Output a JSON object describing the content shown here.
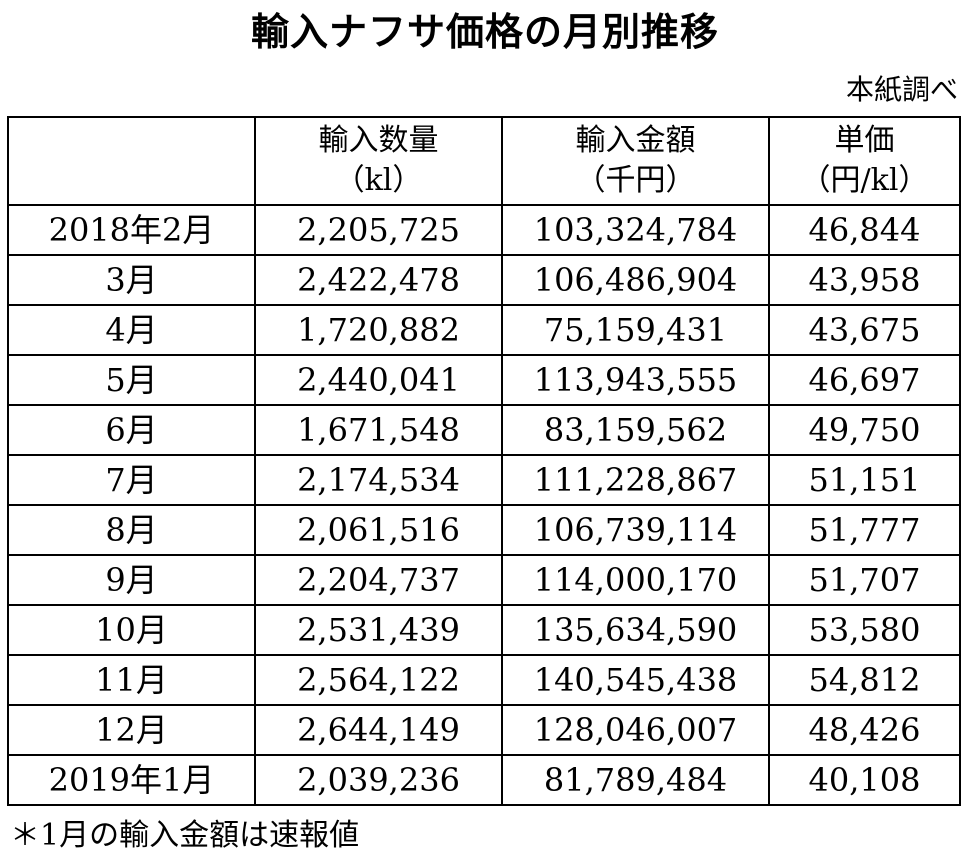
{
  "title": "輸入ナフサ価格の月別推移",
  "source": "本紙調べ",
  "table": {
    "headers": [
      {
        "line1": "",
        "line2": ""
      },
      {
        "line1": "輸入数量",
        "line2": "（kl）"
      },
      {
        "line1": "輸入金額",
        "line2": "（千円）"
      },
      {
        "line1": "単価",
        "line2": "（円/kl）"
      }
    ],
    "rows": [
      {
        "month": "2018年2月",
        "quantity": "2,205,725",
        "amount": "103,324,784",
        "unit_price": "46,844"
      },
      {
        "month": "3月",
        "quantity": "2,422,478",
        "amount": "106,486,904",
        "unit_price": "43,958"
      },
      {
        "month": "4月",
        "quantity": "1,720,882",
        "amount": "75,159,431",
        "unit_price": "43,675"
      },
      {
        "month": "5月",
        "quantity": "2,440,041",
        "amount": "113,943,555",
        "unit_price": "46,697"
      },
      {
        "month": "6月",
        "quantity": "1,671,548",
        "amount": "83,159,562",
        "unit_price": "49,750"
      },
      {
        "month": "7月",
        "quantity": "2,174,534",
        "amount": "111,228,867",
        "unit_price": "51,151"
      },
      {
        "month": "8月",
        "quantity": "2,061,516",
        "amount": "106,739,114",
        "unit_price": "51,777"
      },
      {
        "month": "9月",
        "quantity": "2,204,737",
        "amount": "114,000,170",
        "unit_price": "51,707"
      },
      {
        "month": "10月",
        "quantity": "2,531,439",
        "amount": "135,634,590",
        "unit_price": "53,580"
      },
      {
        "month": "11月",
        "quantity": "2,564,122",
        "amount": "140,545,438",
        "unit_price": "54,812"
      },
      {
        "month": "12月",
        "quantity": "2,644,149",
        "amount": "128,046,007",
        "unit_price": "48,426"
      },
      {
        "month": "2019年1月",
        "quantity": "2,039,236",
        "amount": "81,789,484",
        "unit_price": "40,108"
      }
    ]
  },
  "footnote": "＊1月の輸入金額は速報値"
}
